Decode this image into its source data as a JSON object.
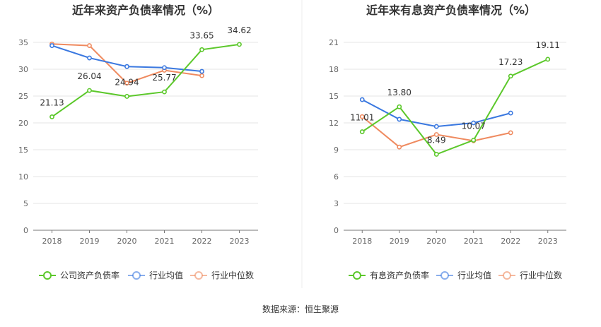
{
  "source_text": "数据来源：恒生聚源",
  "chart_data": [
    {
      "type": "line",
      "title": "近年来资产负债率情况（%）",
      "categories": [
        "2018",
        "2019",
        "2020",
        "2021",
        "2022",
        "2023"
      ],
      "ylim": [
        0,
        35
      ],
      "yticks": [
        0,
        5,
        10,
        15,
        20,
        25,
        30,
        35
      ],
      "grid": true,
      "legend_position": "bottom",
      "series": [
        {
          "name": "公司资产负债率",
          "color": "#5cc82b",
          "values": [
            21.13,
            26.04,
            24.94,
            25.77,
            33.65,
            34.62
          ],
          "labels": [
            "21.13",
            "26.04",
            "24.94",
            "25.77",
            "33.65",
            "34.62"
          ]
        },
        {
          "name": "行业均值",
          "color": "#3a78e0",
          "values": [
            34.4,
            32.1,
            30.5,
            30.3,
            29.6,
            null
          ]
        },
        {
          "name": "行业中位数",
          "color": "#ef8a5f",
          "values": [
            34.7,
            34.4,
            27.4,
            29.8,
            28.8,
            null
          ]
        }
      ]
    },
    {
      "type": "line",
      "title": "近年来有息资产负债率情况（%）",
      "categories": [
        "2018",
        "2019",
        "2020",
        "2021",
        "2022",
        "2023"
      ],
      "ylim": [
        0,
        21
      ],
      "yticks": [
        0,
        3,
        6,
        9,
        12,
        15,
        18,
        21
      ],
      "grid": true,
      "legend_position": "bottom",
      "series": [
        {
          "name": "有息资产负债率",
          "color": "#5cc82b",
          "values": [
            11.01,
            13.8,
            8.49,
            10.07,
            17.23,
            19.11
          ],
          "labels": [
            "11.01",
            "13.80",
            "8.49",
            "10.07",
            "17.23",
            "19.11"
          ]
        },
        {
          "name": "行业均值",
          "color": "#3a78e0",
          "values": [
            14.6,
            12.4,
            11.6,
            12.0,
            13.1,
            null
          ]
        },
        {
          "name": "行业中位数",
          "color": "#ef8a5f",
          "values": [
            12.7,
            9.3,
            10.7,
            10.0,
            10.9,
            null
          ]
        }
      ]
    }
  ]
}
